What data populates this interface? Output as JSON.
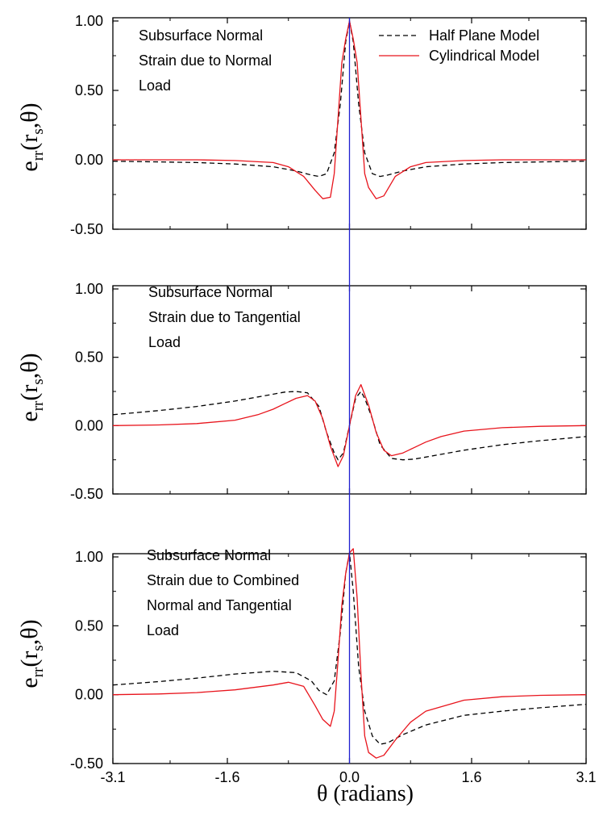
{
  "chart_data": [
    {
      "type": "line",
      "annotation": [
        "Subsurface Normal",
        "Strain due to Normal",
        "Load"
      ],
      "ylabel": {
        "main": "e",
        "sub1": "rr",
        "open": "(r",
        "sub2": "s",
        "close": ",θ)"
      },
      "xlim": [
        -3.1,
        3.1
      ],
      "ylim": [
        -0.5,
        1.0
      ],
      "xticks": [
        -3.1,
        -1.6,
        0.0,
        1.6,
        3.1
      ],
      "xtick_labels": [
        "-3.1",
        "-1.6",
        "0.0",
        "1.6",
        "3.1"
      ],
      "yticks": [
        -0.5,
        0.0,
        0.5,
        1.0
      ],
      "ytick_labels": [
        "-0.50",
        "0.00",
        "0.50",
        "1.00"
      ],
      "legend": {
        "position": "top-right",
        "entries": [
          {
            "label": "Half Plane Model",
            "style": "dashed",
            "color": "#000000"
          },
          {
            "label": "Cylindrical Model",
            "style": "solid",
            "color": "#e8141c"
          }
        ]
      },
      "series": [
        {
          "name": "Half Plane Model",
          "color": "#000000",
          "style": "dashed",
          "x": [
            -3.1,
            -2.5,
            -2.0,
            -1.5,
            -1.0,
            -0.7,
            -0.5,
            -0.4,
            -0.3,
            -0.2,
            -0.12,
            -0.05,
            0.0,
            0.05,
            0.12,
            0.2,
            0.3,
            0.4,
            0.5,
            0.7,
            1.0,
            1.5,
            2.0,
            2.5,
            3.1
          ],
          "y": [
            -0.01,
            -0.015,
            -0.02,
            -0.03,
            -0.05,
            -0.08,
            -0.11,
            -0.12,
            -0.1,
            0.05,
            0.4,
            0.85,
            1.0,
            0.85,
            0.4,
            0.05,
            -0.1,
            -0.12,
            -0.11,
            -0.08,
            -0.05,
            -0.03,
            -0.02,
            -0.015,
            -0.01
          ]
        },
        {
          "name": "Cylindrical Model",
          "color": "#e8141c",
          "style": "solid",
          "x": [
            -3.1,
            -2.5,
            -2.0,
            -1.5,
            -1.0,
            -0.8,
            -0.6,
            -0.45,
            -0.35,
            -0.25,
            -0.2,
            -0.15,
            -0.1,
            -0.05,
            0.0,
            0.05,
            0.1,
            0.15,
            0.2,
            0.25,
            0.35,
            0.45,
            0.6,
            0.8,
            1.0,
            1.5,
            2.0,
            2.5,
            3.1
          ],
          "y": [
            0.0,
            0.0,
            0.0,
            -0.005,
            -0.02,
            -0.05,
            -0.12,
            -0.22,
            -0.28,
            -0.27,
            -0.1,
            0.3,
            0.7,
            0.87,
            1.0,
            0.87,
            0.7,
            0.3,
            -0.1,
            -0.2,
            -0.28,
            -0.26,
            -0.12,
            -0.05,
            -0.02,
            -0.005,
            0.0,
            0.0,
            0.0
          ]
        }
      ]
    },
    {
      "type": "line",
      "annotation": [
        "Subsurface Normal",
        "Strain due to Tangential",
        "Load"
      ],
      "ylabel": {
        "main": "e",
        "sub1": "rr",
        "open": "(r",
        "sub2": "s",
        "close": ",θ)"
      },
      "xlim": [
        -3.1,
        3.1
      ],
      "ylim": [
        -0.5,
        1.0
      ],
      "xticks": [
        -3.1,
        -1.6,
        0.0,
        1.6,
        3.1
      ],
      "xtick_labels": [],
      "yticks": [
        -0.5,
        0.0,
        0.5,
        1.0
      ],
      "ytick_labels": [
        "-0.50",
        "0.00",
        "0.50",
        "1.00"
      ],
      "series": [
        {
          "name": "Half Plane Model",
          "color": "#000000",
          "style": "dashed",
          "x": [
            -3.1,
            -2.5,
            -2.0,
            -1.5,
            -1.2,
            -1.0,
            -0.85,
            -0.7,
            -0.55,
            -0.4,
            -0.3,
            -0.2,
            -0.15,
            -0.08,
            0.0,
            0.08,
            0.15,
            0.2,
            0.3,
            0.4,
            0.55,
            0.7,
            0.85,
            1.0,
            1.2,
            1.5,
            2.0,
            2.5,
            3.1
          ],
          "y": [
            0.08,
            0.11,
            0.14,
            0.18,
            0.21,
            0.23,
            0.245,
            0.25,
            0.24,
            0.14,
            -0.05,
            -0.2,
            -0.25,
            -0.2,
            0.0,
            0.2,
            0.25,
            0.2,
            0.05,
            -0.14,
            -0.24,
            -0.25,
            -0.245,
            -0.23,
            -0.21,
            -0.18,
            -0.14,
            -0.11,
            -0.08
          ]
        },
        {
          "name": "Cylindrical Model",
          "color": "#e8141c",
          "style": "solid",
          "x": [
            -3.1,
            -2.5,
            -2.0,
            -1.5,
            -1.2,
            -1.0,
            -0.85,
            -0.7,
            -0.55,
            -0.45,
            -0.35,
            -0.25,
            -0.15,
            -0.08,
            0.0,
            0.08,
            0.15,
            0.25,
            0.35,
            0.45,
            0.55,
            0.7,
            0.85,
            1.0,
            1.2,
            1.5,
            2.0,
            2.5,
            3.1
          ],
          "y": [
            0.0,
            0.005,
            0.015,
            0.04,
            0.08,
            0.12,
            0.16,
            0.2,
            0.22,
            0.18,
            0.05,
            -0.15,
            -0.3,
            -0.22,
            0.0,
            0.22,
            0.3,
            0.15,
            -0.05,
            -0.18,
            -0.22,
            -0.2,
            -0.16,
            -0.12,
            -0.08,
            -0.04,
            -0.015,
            -0.005,
            0.0
          ]
        }
      ]
    },
    {
      "type": "line",
      "annotation": [
        "Subsurface Normal",
        "Strain due to Combined",
        "Normal and Tangential",
        "Load"
      ],
      "ylabel": {
        "main": "e",
        "sub1": "rr",
        "open": "(r",
        "sub2": "s",
        "close": ",θ)"
      },
      "xlabel": "θ (radians)",
      "xlim": [
        -3.1,
        3.1
      ],
      "ylim": [
        -0.5,
        1.0
      ],
      "xticks": [
        -3.1,
        -1.6,
        0.0,
        1.6,
        3.1
      ],
      "xtick_labels": [
        "-3.1",
        "-1.6",
        "0.0",
        "1.6",
        "3.1"
      ],
      "yticks": [
        -0.5,
        0.0,
        0.5,
        1.0
      ],
      "ytick_labels": [
        "-0.50",
        "0.00",
        "0.50",
        "1.00"
      ],
      "series": [
        {
          "name": "Half Plane Model",
          "color": "#000000",
          "style": "dashed",
          "x": [
            -3.1,
            -2.5,
            -2.0,
            -1.5,
            -1.0,
            -0.7,
            -0.5,
            -0.4,
            -0.3,
            -0.2,
            -0.12,
            -0.05,
            0.0,
            0.05,
            0.12,
            0.2,
            0.3,
            0.4,
            0.5,
            0.7,
            1.0,
            1.5,
            2.0,
            2.5,
            3.1
          ],
          "y": [
            0.07,
            0.095,
            0.12,
            0.15,
            0.17,
            0.16,
            0.1,
            0.03,
            0.0,
            0.1,
            0.45,
            0.88,
            1.03,
            0.75,
            0.2,
            -0.12,
            -0.3,
            -0.36,
            -0.35,
            -0.29,
            -0.22,
            -0.15,
            -0.12,
            -0.095,
            -0.07
          ]
        },
        {
          "name": "Cylindrical Model",
          "color": "#e8141c",
          "style": "solid",
          "x": [
            -3.1,
            -2.5,
            -2.0,
            -1.5,
            -1.0,
            -0.8,
            -0.6,
            -0.45,
            -0.35,
            -0.25,
            -0.2,
            -0.15,
            -0.1,
            -0.05,
            0.0,
            0.05,
            0.1,
            0.15,
            0.2,
            0.25,
            0.35,
            0.45,
            0.6,
            0.8,
            1.0,
            1.5,
            2.0,
            2.5,
            3.1
          ],
          "y": [
            0.0,
            0.005,
            0.015,
            0.035,
            0.07,
            0.09,
            0.06,
            -0.08,
            -0.18,
            -0.23,
            -0.12,
            0.25,
            0.65,
            0.88,
            1.03,
            1.06,
            0.7,
            0.15,
            -0.3,
            -0.42,
            -0.46,
            -0.44,
            -0.33,
            -0.2,
            -0.12,
            -0.04,
            -0.015,
            -0.005,
            0.0
          ]
        }
      ]
    }
  ],
  "vertical_line": {
    "x": 0.0,
    "color": "#1f1fd0"
  }
}
